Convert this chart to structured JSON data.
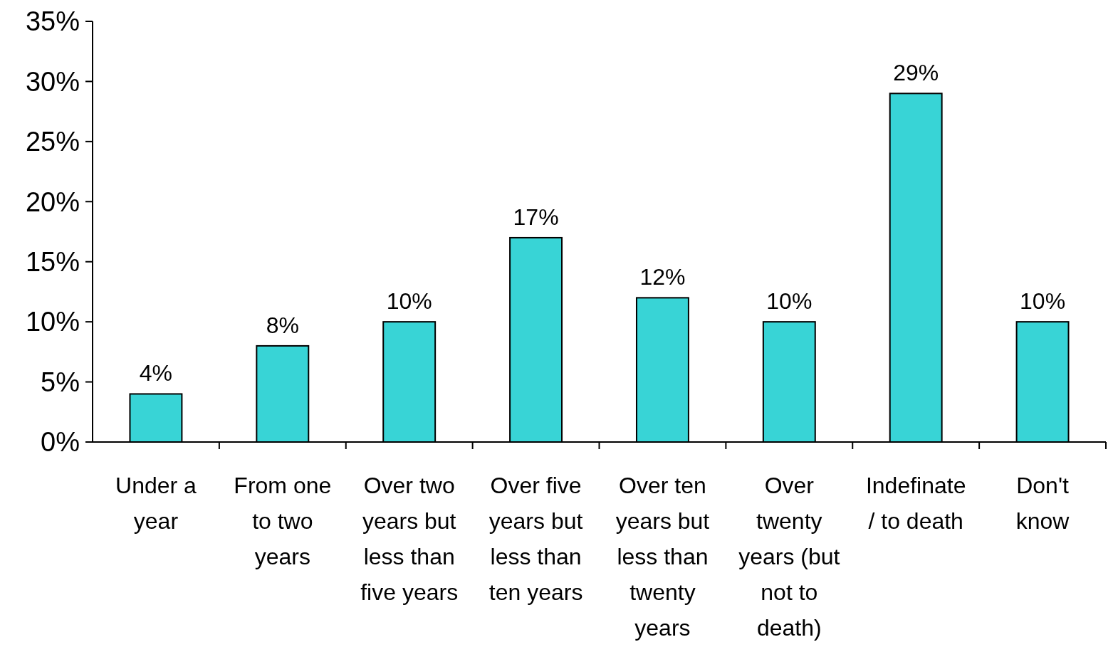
{
  "chart_data": {
    "type": "bar",
    "categories": [
      "Under a year",
      "From one to two years",
      "Over two years but less than five years",
      "Over five years but less than ten years",
      "Over ten years but less than twenty years",
      "Over twenty years (but not to death)",
      "Indefinate / to death",
      "Don't know"
    ],
    "values": [
      4,
      8,
      10,
      17,
      12,
      10,
      29,
      10
    ],
    "value_labels": [
      "4%",
      "8%",
      "10%",
      "17%",
      "12%",
      "10%",
      "29%",
      "10%"
    ],
    "color": "#38d4d6",
    "ylim": [
      0,
      35
    ],
    "yticks": [
      {
        "value": 0,
        "label": "0%"
      },
      {
        "value": 5,
        "label": "5%"
      },
      {
        "value": 10,
        "label": "10%"
      },
      {
        "value": 15,
        "label": "15%"
      },
      {
        "value": 20,
        "label": "20%"
      },
      {
        "value": 25,
        "label": "25%"
      },
      {
        "value": 30,
        "label": "30%"
      },
      {
        "value": 35,
        "label": "35%"
      }
    ],
    "grid": false
  }
}
